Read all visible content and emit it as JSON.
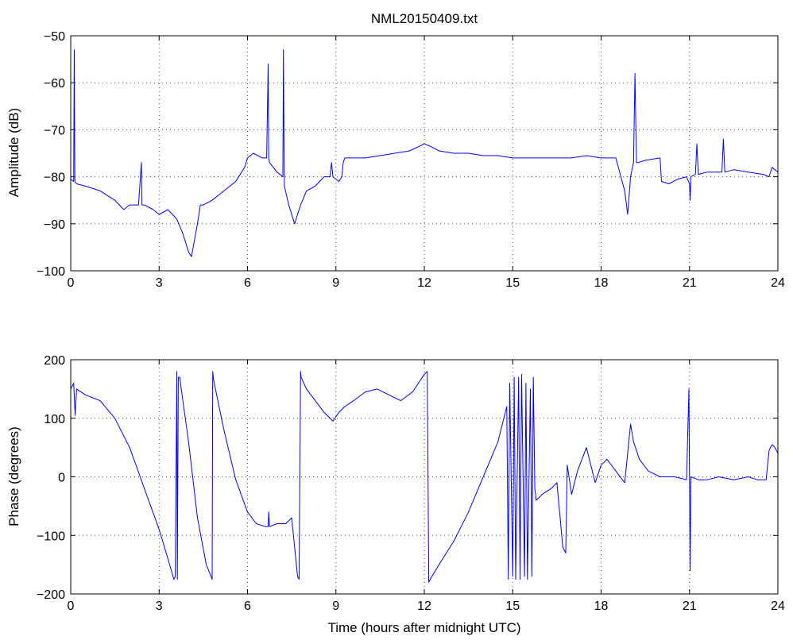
{
  "chart_data": [
    {
      "type": "line",
      "title": "NML20150409.txt",
      "xlabel": "",
      "ylabel": "Amplitude (dB)",
      "xlim": [
        0,
        24
      ],
      "ylim": [
        -100,
        -50
      ],
      "xticks": [
        "0",
        "3",
        "6",
        "9",
        "12",
        "15",
        "18",
        "21",
        "24"
      ],
      "yticks": [
        "−50",
        "−60",
        "−70",
        "−80",
        "−90",
        "−100"
      ],
      "grid": true,
      "color": "#0000ff",
      "x": [
        0,
        0.1,
        0.12,
        0.14,
        0.2,
        0.5,
        1.0,
        1.5,
        1.8,
        2.0,
        2.3,
        2.4,
        2.42,
        2.5,
        2.8,
        3.0,
        3.3,
        3.6,
        3.8,
        4.0,
        4.1,
        4.3,
        4.4,
        4.5,
        4.8,
        5.2,
        5.6,
        5.9,
        6.0,
        6.2,
        6.5,
        6.65,
        6.7,
        6.72,
        6.75,
        7.0,
        7.2,
        7.22,
        7.25,
        7.4,
        7.6,
        7.8,
        8.0,
        8.3,
        8.6,
        8.8,
        8.85,
        8.9,
        9.1,
        9.2,
        9.25,
        9.3,
        9.6,
        10.0,
        10.5,
        11.0,
        11.5,
        12.0,
        12.2,
        12.5,
        13.0,
        13.5,
        14.0,
        14.5,
        15.0,
        15.5,
        16.0,
        16.5,
        17.0,
        17.5,
        18.0,
        18.5,
        18.8,
        18.9,
        19.0,
        19.1,
        19.15,
        19.2,
        19.25,
        19.5,
        20.0,
        20.05,
        20.3,
        20.6,
        20.9,
        21.0,
        21.02,
        21.05,
        21.2,
        21.25,
        21.3,
        21.6,
        22.0,
        22.1,
        22.15,
        22.2,
        22.5,
        23.0,
        23.5,
        23.7,
        23.8,
        24.0
      ],
      "values": [
        -80.5,
        -81,
        -53,
        -81,
        -81.5,
        -82,
        -83,
        -85,
        -87,
        -86,
        -86,
        -77,
        -86,
        -86,
        -87,
        -88,
        -87,
        -89,
        -92,
        -96,
        -97,
        -90,
        -86,
        -86,
        -85,
        -83,
        -81,
        -78,
        -76,
        -75,
        -76,
        -76,
        -56,
        -76,
        -77,
        -79,
        -80,
        -53,
        -82,
        -86,
        -90,
        -86,
        -83,
        -82,
        -80,
        -80,
        -77,
        -80,
        -81,
        -80,
        -77,
        -76,
        -76,
        -76,
        -75.5,
        -75,
        -74.5,
        -73,
        -73.5,
        -74.5,
        -75,
        -75,
        -75.5,
        -75.5,
        -76,
        -76,
        -76,
        -76,
        -76,
        -75.5,
        -76,
        -76,
        -83,
        -88,
        -80,
        -77,
        -58,
        -77,
        -77,
        -76.5,
        -76,
        -81,
        -81.5,
        -80.5,
        -80,
        -81.5,
        -85,
        -80,
        -79.5,
        -73,
        -79.5,
        -79,
        -79,
        -79,
        -72,
        -79,
        -78.5,
        -79,
        -79.5,
        -80,
        -78,
        -79
      ]
    },
    {
      "type": "line",
      "title": "",
      "xlabel": "Time (hours after midnight UTC)",
      "ylabel": "Phase (degrees)",
      "xlim": [
        0,
        24
      ],
      "ylim": [
        -200,
        200
      ],
      "xticks": [
        "0",
        "3",
        "6",
        "9",
        "12",
        "15",
        "18",
        "21",
        "24"
      ],
      "yticks": [
        "200",
        "100",
        "0",
        "−100",
        "−200"
      ],
      "grid": true,
      "color": "#0000ff",
      "x": [
        0,
        0.1,
        0.15,
        0.2,
        0.5,
        1.0,
        1.5,
        2.0,
        2.5,
        3.0,
        3.3,
        3.5,
        3.55,
        3.6,
        3.62,
        3.65,
        3.7,
        3.75,
        4.0,
        4.3,
        4.6,
        4.8,
        4.82,
        4.85,
        5.2,
        5.6,
        6.0,
        6.3,
        6.6,
        6.7,
        6.72,
        6.75,
        7.0,
        7.3,
        7.5,
        7.7,
        7.75,
        7.8,
        7.82,
        8.0,
        8.3,
        8.6,
        8.9,
        9.1,
        9.3,
        9.6,
        10.0,
        10.4,
        10.8,
        11.2,
        11.6,
        12.0,
        12.1,
        12.15,
        12.2,
        12.5,
        13.0,
        13.5,
        14.0,
        14.5,
        14.8,
        14.85,
        14.9,
        15.0,
        15.05,
        15.1,
        15.2,
        15.25,
        15.3,
        15.4,
        15.45,
        15.5,
        15.6,
        15.65,
        15.7,
        15.75,
        15.8,
        16.0,
        16.3,
        16.5,
        16.7,
        16.8,
        16.85,
        17.0,
        17.2,
        17.5,
        17.8,
        18.0,
        18.2,
        18.5,
        18.8,
        19.0,
        19.1,
        19.3,
        19.6,
        20.0,
        20.5,
        20.9,
        20.98,
        21.0,
        21.02,
        21.05,
        21.3,
        21.6,
        22.0,
        22.5,
        23.0,
        23.3,
        23.6,
        23.7,
        23.8,
        23.9,
        24.0
      ],
      "values": [
        150,
        160,
        105,
        150,
        140,
        130,
        100,
        50,
        -20,
        -90,
        -140,
        -175,
        -170,
        180,
        -175,
        170,
        170,
        150,
        60,
        -70,
        -150,
        -175,
        180,
        165,
        80,
        -5,
        -60,
        -80,
        -85,
        -85,
        -60,
        -85,
        -80,
        -80,
        -70,
        -170,
        -175,
        180,
        170,
        150,
        130,
        110,
        95,
        110,
        120,
        130,
        145,
        150,
        140,
        130,
        145,
        175,
        180,
        -180,
        -175,
        -150,
        -110,
        -60,
        0,
        60,
        120,
        -175,
        160,
        -170,
        170,
        -175,
        170,
        -175,
        175,
        -170,
        160,
        -175,
        150,
        -170,
        170,
        -20,
        -40,
        -30,
        -20,
        -10,
        -120,
        -130,
        20,
        -30,
        10,
        50,
        -10,
        20,
        30,
        10,
        -10,
        90,
        60,
        30,
        10,
        0,
        0,
        -5,
        150,
        -5,
        -160,
        0,
        -5,
        -5,
        0,
        -5,
        0,
        -5,
        -5,
        45,
        55,
        50,
        40
      ]
    }
  ]
}
